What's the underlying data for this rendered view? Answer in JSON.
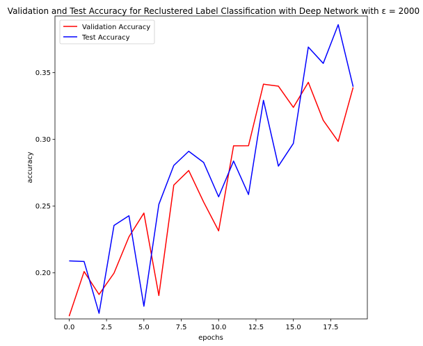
{
  "chart_data": {
    "type": "line",
    "title": "Validation and Test Accuracy for Reclustered Label Classification with Deep Network with ε = 2000",
    "xlabel": "epochs",
    "ylabel": "accuracy",
    "xlim": [
      -0.95,
      19.95
    ],
    "ylim": [
      0.1655,
      0.3925
    ],
    "xticks": [
      0,
      2.5,
      5,
      7.5,
      10,
      12.5,
      15,
      17.5
    ],
    "xtick_labels": [
      "0.0",
      "2.5",
      "5.0",
      "7.5",
      "10.0",
      "12.5",
      "15.0",
      "17.5"
    ],
    "yticks": [
      0.2,
      0.25,
      0.3,
      0.35
    ],
    "ytick_labels": [
      "0.20",
      "0.25",
      "0.30",
      "0.35"
    ],
    "legend_position": "top-left",
    "x": [
      0,
      1,
      2,
      3,
      4,
      5,
      6,
      7,
      8,
      9,
      10,
      11,
      12,
      13,
      14,
      15,
      16,
      17,
      18,
      19
    ],
    "series": [
      {
        "name": "Validation Accuracy",
        "color": "#ff0000",
        "values": [
          0.1675,
          0.201,
          0.1838,
          0.1998,
          0.227,
          0.2448,
          0.183,
          0.2658,
          0.2767,
          0.253,
          0.2315,
          0.2952,
          0.2953,
          0.3414,
          0.3399,
          0.324,
          0.3428,
          0.3143,
          0.2985,
          0.339
        ]
      },
      {
        "name": "Test Accuracy",
        "color": "#0000ff",
        "values": [
          0.209,
          0.2085,
          0.1697,
          0.2355,
          0.2428,
          0.175,
          0.2513,
          0.2805,
          0.2911,
          0.2827,
          0.257,
          0.2838,
          0.2587,
          0.3293,
          0.28,
          0.297,
          0.3692,
          0.357,
          0.386,
          0.3395
        ]
      }
    ]
  }
}
